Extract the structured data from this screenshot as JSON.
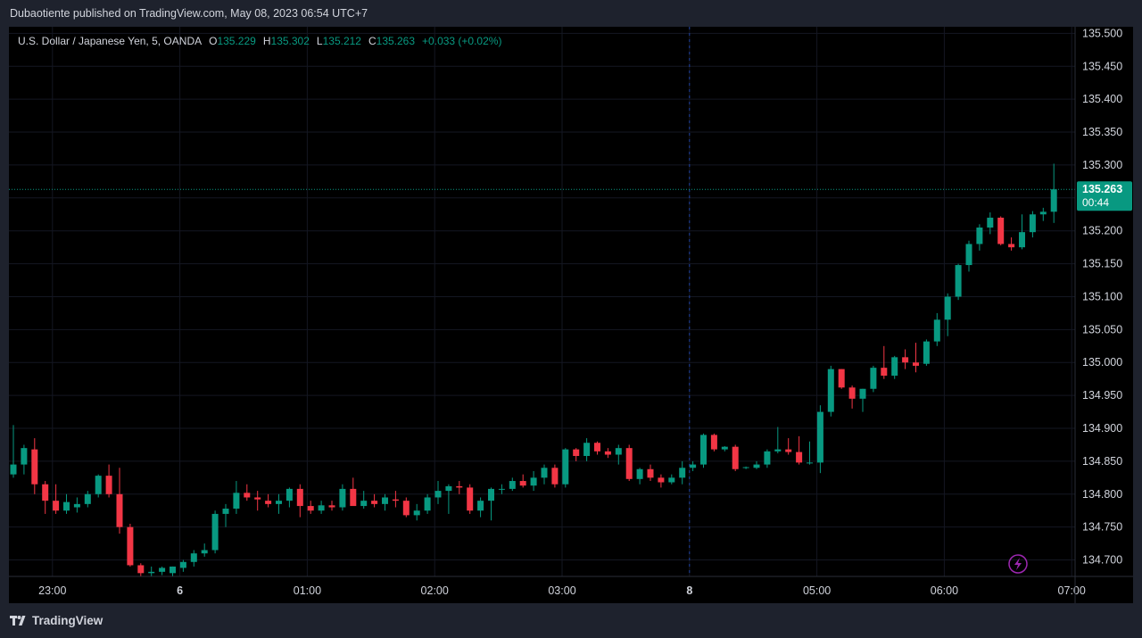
{
  "header": {
    "published_text": "Dubaotiente published on TradingView.com, May 08, 2023 06:54 UTC+7"
  },
  "legend": {
    "symbol": "U.S. Dollar / Japanese Yen, 5, OANDA",
    "o_label": "O",
    "o_value": "135.229",
    "h_label": "H",
    "h_value": "135.302",
    "l_label": "L",
    "l_value": "135.212",
    "c_label": "C",
    "c_value": "135.263",
    "change": "+0.033 (+0.02%)"
  },
  "footer": {
    "brand": "TradingView"
  },
  "colors": {
    "up": "#089981",
    "down": "#f23645",
    "background": "#000000",
    "frame": "#1e222d",
    "grid": "#141722",
    "text": "#d1d4dc",
    "price_label_bg": "#089981"
  },
  "icons": [
    "tradingview-logo-icon",
    "lightning-icon"
  ],
  "chart_data": {
    "type": "candlestick",
    "title": "U.S. Dollar / Japanese Yen, 5, OANDA",
    "interval_minutes": 5,
    "y_ticks": [
      "135.500",
      "135.450",
      "135.400",
      "135.350",
      "135.300",
      "135.250",
      "135.200",
      "135.150",
      "135.100",
      "135.050",
      "135.000",
      "134.950",
      "134.900",
      "134.850",
      "134.800",
      "134.750",
      "134.700"
    ],
    "x_ticks": [
      "23:00",
      "6",
      "01:00",
      "02:00",
      "03:00",
      "8",
      "05:00",
      "06:00",
      "07:00"
    ],
    "ylim": [
      134.675,
      135.51
    ],
    "grid": true,
    "current_price": "135.263",
    "countdown": "00:44",
    "session_break": "8",
    "candles": [
      {
        "o": 134.83,
        "h": 134.905,
        "l": 134.825,
        "c": 134.845
      },
      {
        "o": 134.845,
        "h": 134.875,
        "l": 134.83,
        "c": 134.87
      },
      {
        "o": 134.868,
        "h": 134.885,
        "l": 134.8,
        "c": 134.815
      },
      {
        "o": 134.815,
        "h": 134.82,
        "l": 134.77,
        "c": 134.79
      },
      {
        "o": 134.79,
        "h": 134.815,
        "l": 134.77,
        "c": 134.775
      },
      {
        "o": 134.775,
        "h": 134.8,
        "l": 134.77,
        "c": 134.788
      },
      {
        "o": 134.78,
        "h": 134.795,
        "l": 134.772,
        "c": 134.785
      },
      {
        "o": 134.785,
        "h": 134.805,
        "l": 134.78,
        "c": 134.8
      },
      {
        "o": 134.8,
        "h": 134.83,
        "l": 134.795,
        "c": 134.828
      },
      {
        "o": 134.828,
        "h": 134.845,
        "l": 134.795,
        "c": 134.8
      },
      {
        "o": 134.8,
        "h": 134.84,
        "l": 134.74,
        "c": 134.75
      },
      {
        "o": 134.75,
        "h": 134.755,
        "l": 134.69,
        "c": 134.692
      },
      {
        "o": 134.692,
        "h": 134.695,
        "l": 134.675,
        "c": 134.68
      },
      {
        "o": 134.68,
        "h": 134.69,
        "l": 134.675,
        "c": 134.682
      },
      {
        "o": 134.682,
        "h": 134.69,
        "l": 134.677,
        "c": 134.688
      },
      {
        "o": 134.68,
        "h": 134.69,
        "l": 134.675,
        "c": 134.69
      },
      {
        "o": 134.688,
        "h": 134.7,
        "l": 134.682,
        "c": 134.697
      },
      {
        "o": 134.697,
        "h": 134.715,
        "l": 134.69,
        "c": 134.71
      },
      {
        "o": 134.71,
        "h": 134.725,
        "l": 134.705,
        "c": 134.715
      },
      {
        "o": 134.715,
        "h": 134.775,
        "l": 134.71,
        "c": 134.77
      },
      {
        "o": 134.77,
        "h": 134.785,
        "l": 134.75,
        "c": 134.778
      },
      {
        "o": 134.778,
        "h": 134.82,
        "l": 134.77,
        "c": 134.802
      },
      {
        "o": 134.802,
        "h": 134.815,
        "l": 134.79,
        "c": 134.795
      },
      {
        "o": 134.795,
        "h": 134.805,
        "l": 134.775,
        "c": 134.792
      },
      {
        "o": 134.79,
        "h": 134.8,
        "l": 134.78,
        "c": 134.785
      },
      {
        "o": 134.785,
        "h": 134.8,
        "l": 134.77,
        "c": 134.79
      },
      {
        "o": 134.79,
        "h": 134.81,
        "l": 134.78,
        "c": 134.808
      },
      {
        "o": 134.808,
        "h": 134.815,
        "l": 134.765,
        "c": 134.782
      },
      {
        "o": 134.782,
        "h": 134.79,
        "l": 134.77,
        "c": 134.775
      },
      {
        "o": 134.775,
        "h": 134.79,
        "l": 134.77,
        "c": 134.783
      },
      {
        "o": 134.783,
        "h": 134.79,
        "l": 134.775,
        "c": 134.78
      },
      {
        "o": 134.78,
        "h": 134.815,
        "l": 134.775,
        "c": 134.808
      },
      {
        "o": 134.808,
        "h": 134.825,
        "l": 134.79,
        "c": 134.782
      },
      {
        "o": 134.782,
        "h": 134.805,
        "l": 134.778,
        "c": 134.79
      },
      {
        "o": 134.79,
        "h": 134.8,
        "l": 134.78,
        "c": 134.785
      },
      {
        "o": 134.785,
        "h": 134.8,
        "l": 134.775,
        "c": 134.795
      },
      {
        "o": 134.792,
        "h": 134.805,
        "l": 134.78,
        "c": 134.79
      },
      {
        "o": 134.79,
        "h": 134.795,
        "l": 134.765,
        "c": 134.768
      },
      {
        "o": 134.768,
        "h": 134.785,
        "l": 134.76,
        "c": 134.775
      },
      {
        "o": 134.775,
        "h": 134.8,
        "l": 134.77,
        "c": 134.795
      },
      {
        "o": 134.795,
        "h": 134.82,
        "l": 134.785,
        "c": 134.805
      },
      {
        "o": 134.805,
        "h": 134.815,
        "l": 134.77,
        "c": 134.812
      },
      {
        "o": 134.812,
        "h": 134.82,
        "l": 134.8,
        "c": 134.81
      },
      {
        "o": 134.81,
        "h": 134.815,
        "l": 134.77,
        "c": 134.775
      },
      {
        "o": 134.775,
        "h": 134.795,
        "l": 134.765,
        "c": 134.79
      },
      {
        "o": 134.79,
        "h": 134.81,
        "l": 134.76,
        "c": 134.808
      },
      {
        "o": 134.808,
        "h": 134.815,
        "l": 134.8,
        "c": 134.808
      },
      {
        "o": 134.808,
        "h": 134.825,
        "l": 134.805,
        "c": 134.82
      },
      {
        "o": 134.82,
        "h": 134.83,
        "l": 134.81,
        "c": 134.813
      },
      {
        "o": 134.813,
        "h": 134.835,
        "l": 134.805,
        "c": 134.825
      },
      {
        "o": 134.825,
        "h": 134.845,
        "l": 134.815,
        "c": 134.84
      },
      {
        "o": 134.84,
        "h": 134.845,
        "l": 134.81,
        "c": 134.815
      },
      {
        "o": 134.815,
        "h": 134.87,
        "l": 134.81,
        "c": 134.868
      },
      {
        "o": 134.868,
        "h": 134.87,
        "l": 134.85,
        "c": 134.858
      },
      {
        "o": 134.858,
        "h": 134.885,
        "l": 134.85,
        "c": 134.878
      },
      {
        "o": 134.878,
        "h": 134.88,
        "l": 134.86,
        "c": 134.865
      },
      {
        "o": 134.865,
        "h": 134.87,
        "l": 134.855,
        "c": 134.86
      },
      {
        "o": 134.86,
        "h": 134.875,
        "l": 134.845,
        "c": 134.87
      },
      {
        "o": 134.87,
        "h": 134.875,
        "l": 134.82,
        "c": 134.823
      },
      {
        "o": 134.823,
        "h": 134.84,
        "l": 134.815,
        "c": 134.838
      },
      {
        "o": 134.838,
        "h": 134.845,
        "l": 134.82,
        "c": 134.825
      },
      {
        "o": 134.825,
        "h": 134.83,
        "l": 134.81,
        "c": 134.818
      },
      {
        "o": 134.818,
        "h": 134.83,
        "l": 134.815,
        "c": 134.825
      },
      {
        "o": 134.825,
        "h": 134.85,
        "l": 134.815,
        "c": 134.84
      },
      {
        "o": 134.84,
        "h": 134.85,
        "l": 134.835,
        "c": 134.845
      },
      {
        "o": 134.845,
        "h": 134.892,
        "l": 134.84,
        "c": 134.89
      },
      {
        "o": 134.89,
        "h": 134.892,
        "l": 134.865,
        "c": 134.868
      },
      {
        "o": 134.868,
        "h": 134.873,
        "l": 134.865,
        "c": 134.872
      },
      {
        "o": 134.872,
        "h": 134.875,
        "l": 134.835,
        "c": 134.838
      },
      {
        "o": 134.84,
        "h": 134.842,
        "l": 134.838,
        "c": 134.841
      },
      {
        "o": 134.84,
        "h": 134.85,
        "l": 134.838,
        "c": 134.845
      },
      {
        "o": 134.845,
        "h": 134.868,
        "l": 134.84,
        "c": 134.865
      },
      {
        "o": 134.865,
        "h": 134.902,
        "l": 134.862,
        "c": 134.868
      },
      {
        "o": 134.868,
        "h": 134.885,
        "l": 134.86,
        "c": 134.864
      },
      {
        "o": 134.864,
        "h": 134.888,
        "l": 134.845,
        "c": 134.848
      },
      {
        "o": 134.848,
        "h": 134.88,
        "l": 134.845,
        "c": 134.848
      },
      {
        "o": 134.848,
        "h": 134.935,
        "l": 134.832,
        "c": 134.925
      },
      {
        "o": 134.925,
        "h": 134.995,
        "l": 134.918,
        "c": 134.99
      },
      {
        "o": 134.99,
        "h": 134.99,
        "l": 134.96,
        "c": 134.962
      },
      {
        "o": 134.962,
        "h": 134.965,
        "l": 134.93,
        "c": 134.945
      },
      {
        "o": 134.945,
        "h": 134.96,
        "l": 134.925,
        "c": 134.96
      },
      {
        "o": 134.96,
        "h": 134.995,
        "l": 134.955,
        "c": 134.992
      },
      {
        "o": 134.992,
        "h": 135.025,
        "l": 134.975,
        "c": 134.98
      },
      {
        "o": 134.98,
        "h": 135.01,
        "l": 134.975,
        "c": 135.008
      },
      {
        "o": 135.008,
        "h": 135.02,
        "l": 134.99,
        "c": 135.0
      },
      {
        "o": 135.0,
        "h": 135.03,
        "l": 134.985,
        "c": 134.995
      },
      {
        "o": 134.998,
        "h": 135.035,
        "l": 134.995,
        "c": 135.032
      },
      {
        "o": 135.032,
        "h": 135.075,
        "l": 135.025,
        "c": 135.065
      },
      {
        "o": 135.065,
        "h": 135.105,
        "l": 135.04,
        "c": 135.1
      },
      {
        "o": 135.1,
        "h": 135.15,
        "l": 135.095,
        "c": 135.148
      },
      {
        "o": 135.148,
        "h": 135.185,
        "l": 135.138,
        "c": 135.18
      },
      {
        "o": 135.18,
        "h": 135.21,
        "l": 135.17,
        "c": 135.205
      },
      {
        "o": 135.205,
        "h": 135.228,
        "l": 135.195,
        "c": 135.22
      },
      {
        "o": 135.22,
        "h": 135.222,
        "l": 135.178,
        "c": 135.18
      },
      {
        "o": 135.18,
        "h": 135.19,
        "l": 135.17,
        "c": 135.175
      },
      {
        "o": 135.175,
        "h": 135.225,
        "l": 135.172,
        "c": 135.198
      },
      {
        "o": 135.198,
        "h": 135.23,
        "l": 135.19,
        "c": 135.225
      },
      {
        "o": 135.225,
        "h": 135.235,
        "l": 135.215,
        "c": 135.229
      },
      {
        "o": 135.229,
        "h": 135.302,
        "l": 135.212,
        "c": 135.263
      }
    ]
  }
}
